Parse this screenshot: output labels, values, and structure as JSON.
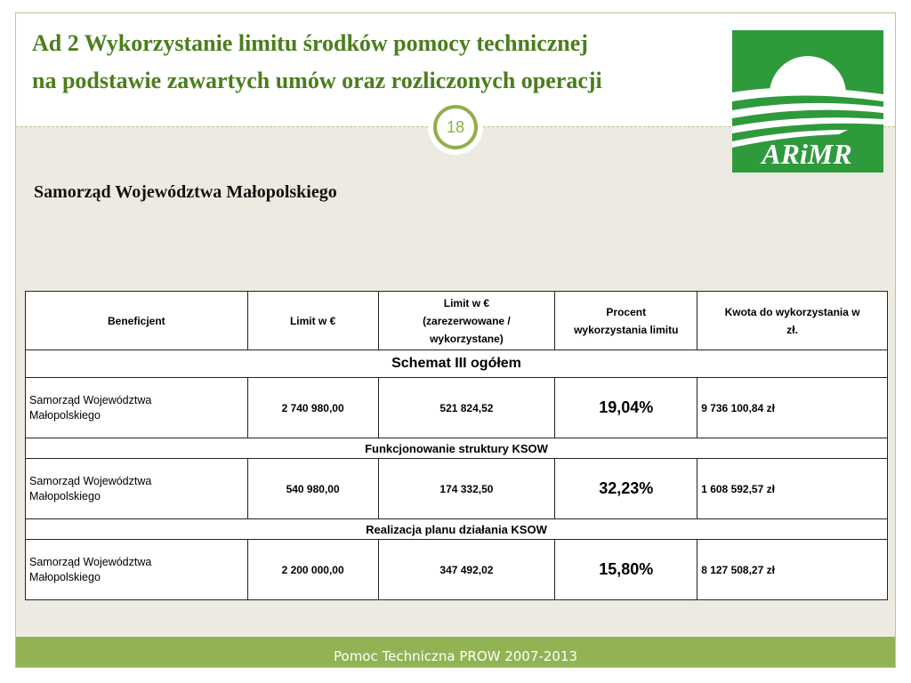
{
  "slide": {
    "title_line1": "Ad 2 Wykorzystanie limitu środków pomocy technicznej",
    "title_line2": "na podstawie zawartych umów oraz rozliczonych operacji",
    "page_number": "18",
    "subtitle": "Samorząd Województwa Małopolskiego",
    "footer": "Pomoc Techniczna PROW 2007-2013"
  },
  "logo": {
    "text": "ARiMR",
    "icon": "arimr-logo"
  },
  "table": {
    "headers": {
      "beneficjent": "Beneficjent",
      "limit": "Limit w €",
      "limit_res_line1": "Limit w €",
      "limit_res_line2": "(zarezerwowane /",
      "limit_res_line3": "wykorzystane)",
      "procent_line1": "Procent",
      "procent_line2": "wykorzystania limitu",
      "kwota_line1": "Kwota do wykorzystania w",
      "kwota_line2": "zł."
    },
    "sections": [
      {
        "label": "Schemat III ogółem",
        "row": {
          "benef_line1": "Samorząd Województwa",
          "benef_line2": "Małopolskiego",
          "limit": "2 740 980,00",
          "reserved": "521 824,52",
          "percent": "19,04%",
          "kwota": "9 736 100,84 zł"
        }
      },
      {
        "label": "Funkcjonowanie struktury KSOW",
        "row": {
          "benef_line1": "Samorząd Województwa",
          "benef_line2": "Małopolskiego",
          "limit": "540 980,00",
          "reserved": "174 332,50",
          "percent": "32,23%",
          "kwota": "1 608 592,57 zł"
        }
      },
      {
        "label": "Realizacja planu działania KSOW",
        "row": {
          "benef_line1": "Samorząd Województwa",
          "benef_line2": "Małopolskiego",
          "limit": "2 200 000,00",
          "reserved": "347 492,02",
          "percent": "15,80%",
          "kwota": "8 127 508,27 zł"
        }
      }
    ]
  },
  "colors": {
    "accent_green": "#4a7e1c",
    "logo_green": "#2e9a3c",
    "footer_green": "#92b353",
    "background": "#edebe1"
  }
}
